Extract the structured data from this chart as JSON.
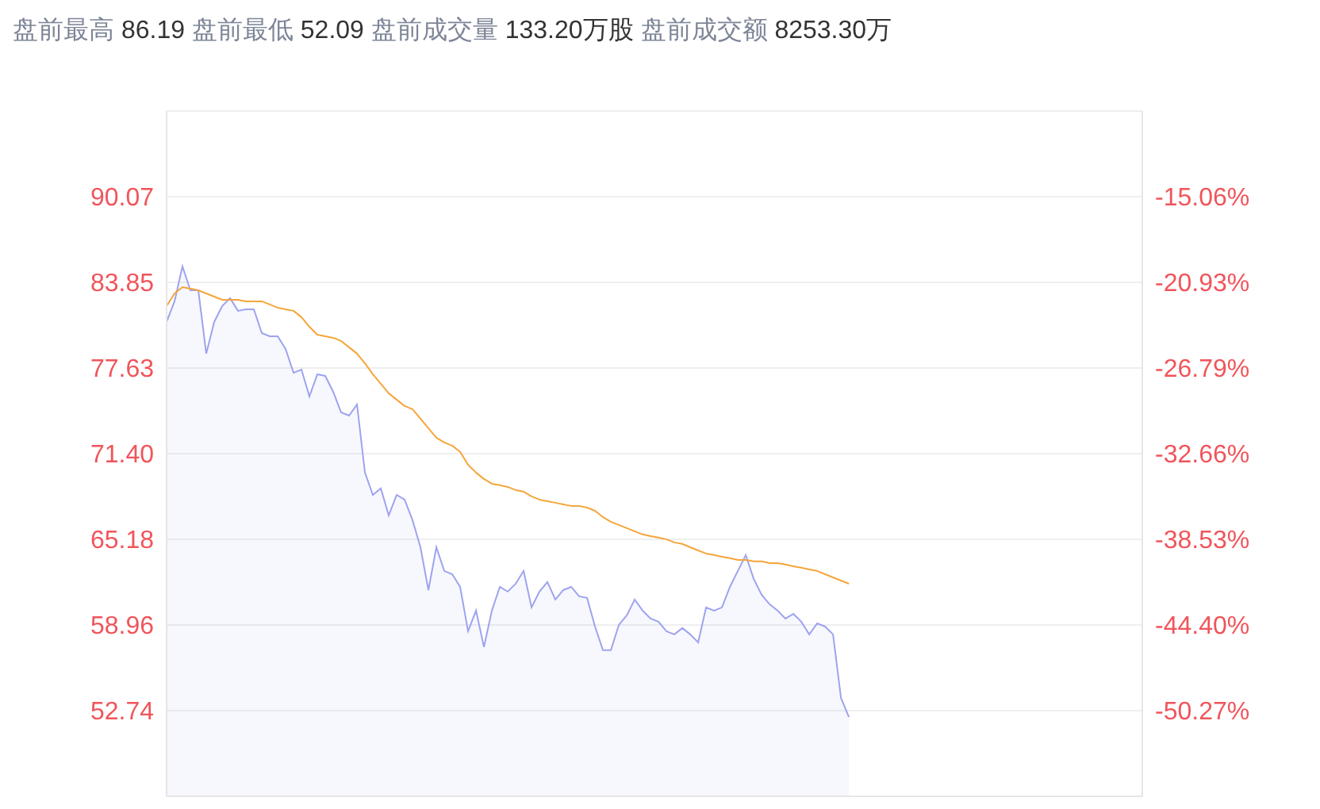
{
  "chart_data": {
    "type": "area",
    "title": "盘前最高 86.19 盘前最低 52.09 盘前成交量 133.20万股 盘前成交额 8253.30万",
    "categories": [
      null,
      null,
      null,
      null,
      null,
      null,
      null,
      null,
      null,
      null,
      null,
      null,
      null,
      null,
      null,
      null,
      null,
      null,
      null,
      null,
      null,
      null,
      null,
      null,
      null,
      null,
      null,
      null,
      null,
      null,
      null,
      null,
      null,
      null,
      null,
      null,
      null,
      null,
      null,
      null,
      null,
      null,
      null,
      null,
      null,
      null,
      null,
      null,
      null,
      null,
      null,
      null,
      null,
      null,
      null,
      null,
      null,
      null,
      null,
      null,
      null,
      null,
      null,
      null,
      null,
      null,
      null,
      null,
      null,
      null,
      null,
      null,
      null,
      null,
      null,
      null,
      null,
      null,
      null,
      null,
      null,
      null,
      null,
      null,
      null,
      null,
      null
    ],
    "series": [
      {
        "color": "#9ea3ee",
        "values": [
          80.97,
          82.47,
          85.0,
          83.27,
          83.27,
          78.67,
          80.97,
          82.12,
          82.7,
          81.78,
          81.89,
          81.89,
          80.16,
          79.93,
          79.93,
          79.01,
          77.28,
          77.51,
          75.56,
          77.17,
          77.05,
          75.9,
          74.4,
          74.17,
          74.98,
          70.03,
          68.41,
          68.88,
          66.92,
          68.41,
          68.07,
          66.57,
          64.61,
          61.5,
          64.61,
          62.89,
          62.65,
          61.73,
          58.51,
          60.01,
          57.36,
          60.01,
          61.73,
          61.39,
          61.96,
          62.89,
          60.24,
          61.39,
          62.08,
          60.81,
          61.5,
          61.73,
          61.04,
          60.93,
          58.85,
          57.13,
          57.13,
          58.97,
          59.66,
          60.81,
          60.01,
          59.43,
          59.2,
          58.51,
          58.28,
          58.74,
          58.28,
          57.7,
          60.24,
          60.01,
          60.24,
          61.73,
          62.89,
          64.04,
          62.31,
          61.16,
          60.47,
          60.01,
          59.43,
          59.77,
          59.2,
          58.28,
          59.08,
          58.85,
          58.28,
          53.67,
          52.28
        ]
      },
      {
        "type": "line",
        "color": "#f5a53a",
        "values": [
          82.12,
          83.04,
          83.5,
          83.39,
          83.27,
          83.04,
          82.81,
          82.58,
          82.58,
          82.58,
          82.47,
          82.47,
          82.47,
          82.24,
          82.01,
          81.89,
          81.78,
          81.32,
          80.62,
          80.05,
          79.93,
          79.82,
          79.59,
          79.13,
          78.67,
          77.97,
          77.17,
          76.48,
          75.79,
          75.33,
          74.87,
          74.64,
          73.95,
          73.26,
          72.57,
          72.22,
          71.99,
          71.53,
          70.6,
          70.03,
          69.57,
          69.22,
          69.11,
          68.99,
          68.76,
          68.65,
          68.3,
          68.07,
          67.95,
          67.84,
          67.72,
          67.61,
          67.61,
          67.49,
          67.26,
          66.8,
          66.46,
          66.23,
          66.0,
          65.77,
          65.54,
          65.42,
          65.31,
          65.19,
          64.96,
          64.85,
          64.61,
          64.38,
          64.15,
          64.04,
          63.92,
          63.81,
          63.69,
          63.69,
          63.58,
          63.58,
          63.46,
          63.46,
          63.35,
          63.23,
          63.12,
          63.0,
          62.89,
          62.65,
          62.42,
          62.19,
          61.96
        ]
      }
    ],
    "ylim": [
      46.52,
      96.29
    ],
    "yticks": [
      {
        "value": 46.52,
        "label": null
      },
      52.74,
      58.96,
      65.18,
      {
        "value": 71.4,
        "label": "71.40"
      },
      77.63,
      83.85,
      90.07,
      {
        "value": 96.29,
        "label": null
      }
    ],
    "y2lim": [
      -56.14,
      -9.19
    ],
    "y2ticks": [
      {
        "value": -50.27,
        "label": "-50.27%"
      },
      {
        "value": -44.4,
        "label": "-44.40%"
      },
      {
        "value": -38.53,
        "label": "-38.53%"
      },
      {
        "value": -32.66,
        "label": "-32.66%"
      },
      {
        "value": -26.79,
        "label": "-26.79%"
      },
      {
        "value": -20.93,
        "label": "-20.93%"
      },
      {
        "value": -15.06,
        "label": "-15.06%"
      }
    ],
    "grid": "y",
    "legend": false,
    "marker": "none",
    "line_style": "solid"
  }
}
